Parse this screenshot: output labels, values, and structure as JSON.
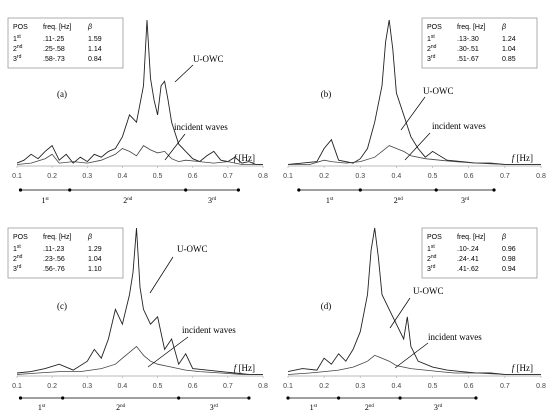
{
  "chart_data": [
    {
      "type": "line",
      "panel_label": "(a)",
      "xlim": [
        0.1,
        0.8
      ],
      "x_ticks": [
        "0.1",
        "0.2",
        "0.3",
        "0.4",
        "0.5",
        "0.6",
        "0.7",
        "0.8"
      ],
      "xlabel": "f [Hz]",
      "series": [
        {
          "name": "U-OWC",
          "x": [
            0.1,
            0.12,
            0.14,
            0.16,
            0.18,
            0.2,
            0.22,
            0.24,
            0.26,
            0.28,
            0.3,
            0.32,
            0.34,
            0.36,
            0.38,
            0.4,
            0.42,
            0.44,
            0.46,
            0.47,
            0.48,
            0.49,
            0.5,
            0.51,
            0.52,
            0.53,
            0.54,
            0.56,
            0.58,
            0.6,
            0.62,
            0.64,
            0.66,
            0.68,
            0.7,
            0.72,
            0.74,
            0.76,
            0.78,
            0.8
          ],
          "y": [
            0.02,
            0.04,
            0.08,
            0.05,
            0.1,
            0.14,
            0.04,
            0.08,
            0.02,
            0.06,
            0.03,
            0.08,
            0.06,
            0.1,
            0.12,
            0.2,
            0.35,
            0.3,
            0.55,
            1.0,
            0.6,
            0.45,
            0.35,
            0.55,
            0.58,
            0.45,
            0.3,
            0.15,
            0.1,
            0.05,
            0.03,
            0.07,
            0.1,
            0.04,
            0.03,
            0.06,
            0.02,
            0.03,
            0.01,
            0.01
          ]
        },
        {
          "name": "incident waves",
          "x": [
            0.1,
            0.14,
            0.18,
            0.2,
            0.22,
            0.26,
            0.3,
            0.34,
            0.38,
            0.4,
            0.42,
            0.44,
            0.46,
            0.48,
            0.5,
            0.52,
            0.54,
            0.56,
            0.58,
            0.62,
            0.66,
            0.7,
            0.74,
            0.8
          ],
          "y": [
            0.01,
            0.02,
            0.05,
            0.08,
            0.02,
            0.03,
            0.02,
            0.04,
            0.08,
            0.12,
            0.1,
            0.07,
            0.14,
            0.11,
            0.09,
            0.1,
            0.05,
            0.03,
            0.04,
            0.03,
            0.02,
            0.03,
            0.01,
            0.01
          ]
        }
      ],
      "annotations": {
        "uowc": "U-OWC",
        "incident": "incident waves"
      },
      "table": {
        "headers": [
          "POS",
          "freq. [Hz]",
          "β"
        ],
        "rows": [
          [
            "1st",
            ".11-.25",
            "1.59"
          ],
          [
            "2nd",
            ".25-.58",
            "1.14"
          ],
          [
            "3rd",
            ".58-.73",
            "0.84"
          ]
        ]
      },
      "ranges": [
        {
          "label": "1st",
          "from": 0.11,
          "to": 0.25
        },
        {
          "label": "2nd",
          "from": 0.25,
          "to": 0.58
        },
        {
          "label": "3rd",
          "from": 0.58,
          "to": 0.73
        }
      ]
    },
    {
      "type": "line",
      "panel_label": "(b)",
      "xlim": [
        0.1,
        0.8
      ],
      "x_ticks": [
        "0.1",
        "0.2",
        "0.3",
        "0.4",
        "0.5",
        "0.6",
        "0.7",
        "0.8"
      ],
      "xlabel": "f [Hz]",
      "series": [
        {
          "name": "U-OWC",
          "x": [
            0.1,
            0.14,
            0.18,
            0.2,
            0.22,
            0.24,
            0.28,
            0.3,
            0.32,
            0.34,
            0.36,
            0.37,
            0.38,
            0.39,
            0.4,
            0.42,
            0.44,
            0.46,
            0.48,
            0.5,
            0.54,
            0.58,
            0.62,
            0.66,
            0.7,
            0.74,
            0.8
          ],
          "y": [
            0.01,
            0.02,
            0.03,
            0.12,
            0.18,
            0.04,
            0.02,
            0.05,
            0.12,
            0.3,
            0.55,
            0.85,
            1.0,
            0.8,
            0.5,
            0.35,
            0.2,
            0.12,
            0.06,
            0.1,
            0.04,
            0.03,
            0.02,
            0.02,
            0.01,
            0.01,
            0.01
          ]
        },
        {
          "name": "incident waves",
          "x": [
            0.1,
            0.16,
            0.2,
            0.22,
            0.26,
            0.3,
            0.34,
            0.36,
            0.38,
            0.4,
            0.42,
            0.44,
            0.48,
            0.52,
            0.56,
            0.62,
            0.7,
            0.8
          ],
          "y": [
            0.01,
            0.01,
            0.04,
            0.03,
            0.02,
            0.03,
            0.06,
            0.1,
            0.14,
            0.12,
            0.1,
            0.07,
            0.05,
            0.04,
            0.03,
            0.02,
            0.01,
            0.01
          ]
        }
      ],
      "annotations": {
        "uowc": "U-OWC",
        "incident": "incident waves"
      },
      "table": {
        "headers": [
          "POS",
          "freq. [Hz]",
          "β"
        ],
        "rows": [
          [
            "1st",
            ".13-.30",
            "1.24"
          ],
          [
            "2nd",
            ".30-.51",
            "1.04"
          ],
          [
            "3rd",
            ".51-.67",
            "0.85"
          ]
        ]
      },
      "ranges": [
        {
          "label": "1st",
          "from": 0.13,
          "to": 0.3
        },
        {
          "label": "2nd",
          "from": 0.3,
          "to": 0.51
        },
        {
          "label": "3rd",
          "from": 0.51,
          "to": 0.67
        }
      ]
    },
    {
      "type": "line",
      "panel_label": "(c)",
      "xlim": [
        0.1,
        0.8
      ],
      "x_ticks": [
        "0.1",
        "0.2",
        "0.3",
        "0.4",
        "0.5",
        "0.6",
        "0.7",
        "0.8"
      ],
      "xlabel": "f [Hz]",
      "series": [
        {
          "name": "U-OWC",
          "x": [
            0.1,
            0.14,
            0.18,
            0.22,
            0.26,
            0.3,
            0.32,
            0.34,
            0.36,
            0.38,
            0.4,
            0.42,
            0.43,
            0.44,
            0.45,
            0.46,
            0.48,
            0.5,
            0.52,
            0.54,
            0.56,
            0.58,
            0.6,
            0.64,
            0.68,
            0.72,
            0.76,
            0.8
          ],
          "y": [
            0.02,
            0.03,
            0.05,
            0.08,
            0.04,
            0.1,
            0.18,
            0.12,
            0.25,
            0.45,
            0.35,
            0.55,
            0.7,
            1.0,
            0.6,
            0.45,
            0.35,
            0.4,
            0.18,
            0.25,
            0.08,
            0.15,
            0.05,
            0.04,
            0.03,
            0.02,
            0.01,
            0.01
          ]
        },
        {
          "name": "incident waves",
          "x": [
            0.1,
            0.16,
            0.22,
            0.28,
            0.34,
            0.38,
            0.4,
            0.42,
            0.44,
            0.46,
            0.48,
            0.5,
            0.54,
            0.58,
            0.62,
            0.68,
            0.74,
            0.8
          ],
          "y": [
            0.01,
            0.02,
            0.03,
            0.03,
            0.05,
            0.08,
            0.12,
            0.16,
            0.2,
            0.14,
            0.1,
            0.08,
            0.06,
            0.04,
            0.03,
            0.02,
            0.01,
            0.01
          ]
        }
      ],
      "annotations": {
        "uowc": "U-OWC",
        "incident": "incident waves"
      },
      "table": {
        "headers": [
          "POS",
          "freq. [Hz]",
          "β"
        ],
        "rows": [
          [
            "1st",
            ".11-.23",
            "1.29"
          ],
          [
            "2nd",
            ".23-.56",
            "1.04"
          ],
          [
            "3rd",
            ".56-.76",
            "1.10"
          ]
        ]
      },
      "ranges": [
        {
          "label": "1st",
          "from": 0.11,
          "to": 0.23
        },
        {
          "label": "2nd",
          "from": 0.23,
          "to": 0.56
        },
        {
          "label": "3rd",
          "from": 0.56,
          "to": 0.76
        }
      ]
    },
    {
      "type": "line",
      "panel_label": "(d)",
      "xlim": [
        0.1,
        0.8
      ],
      "x_ticks": [
        "0.1",
        "0.2",
        "0.3",
        "0.4",
        "0.5",
        "0.6",
        "0.7",
        "0.8"
      ],
      "xlabel": "f [Hz]",
      "series": [
        {
          "name": "U-OWC",
          "x": [
            0.1,
            0.14,
            0.18,
            0.2,
            0.22,
            0.24,
            0.26,
            0.28,
            0.3,
            0.32,
            0.33,
            0.34,
            0.35,
            0.36,
            0.38,
            0.4,
            0.42,
            0.43,
            0.44,
            0.46,
            0.5,
            0.54,
            0.58,
            0.62,
            0.66,
            0.7,
            0.74,
            0.8
          ],
          "y": [
            0.03,
            0.05,
            0.04,
            0.12,
            0.08,
            0.15,
            0.1,
            0.18,
            0.3,
            0.55,
            0.85,
            1.0,
            0.8,
            0.55,
            0.45,
            0.35,
            0.25,
            0.4,
            0.2,
            0.1,
            0.06,
            0.04,
            0.03,
            0.02,
            0.02,
            0.01,
            0.01,
            0.01
          ]
        },
        {
          "name": "incident waves",
          "x": [
            0.1,
            0.16,
            0.2,
            0.24,
            0.28,
            0.3,
            0.32,
            0.34,
            0.36,
            0.38,
            0.4,
            0.44,
            0.48,
            0.52,
            0.56,
            0.62,
            0.7,
            0.8
          ],
          "y": [
            0.01,
            0.02,
            0.03,
            0.04,
            0.06,
            0.08,
            0.1,
            0.14,
            0.12,
            0.1,
            0.07,
            0.05,
            0.04,
            0.03,
            0.02,
            0.02,
            0.01,
            0.01
          ]
        }
      ],
      "annotations": {
        "uowc": "U-OWC",
        "incident": "incident waves"
      },
      "table": {
        "headers": [
          "POS",
          "freq. [Hz]",
          "β"
        ],
        "rows": [
          [
            "1st",
            ".10-.24",
            "0.96"
          ],
          [
            "2nd",
            ".24-.41",
            "0.98"
          ],
          [
            "3rd",
            ".41-.62",
            "0.94"
          ]
        ]
      },
      "ranges": [
        {
          "label": "1st",
          "from": 0.1,
          "to": 0.24
        },
        {
          "label": "2nd",
          "from": 0.24,
          "to": 0.41
        },
        {
          "label": "3rd",
          "from": 0.41,
          "to": 0.62
        }
      ]
    }
  ]
}
